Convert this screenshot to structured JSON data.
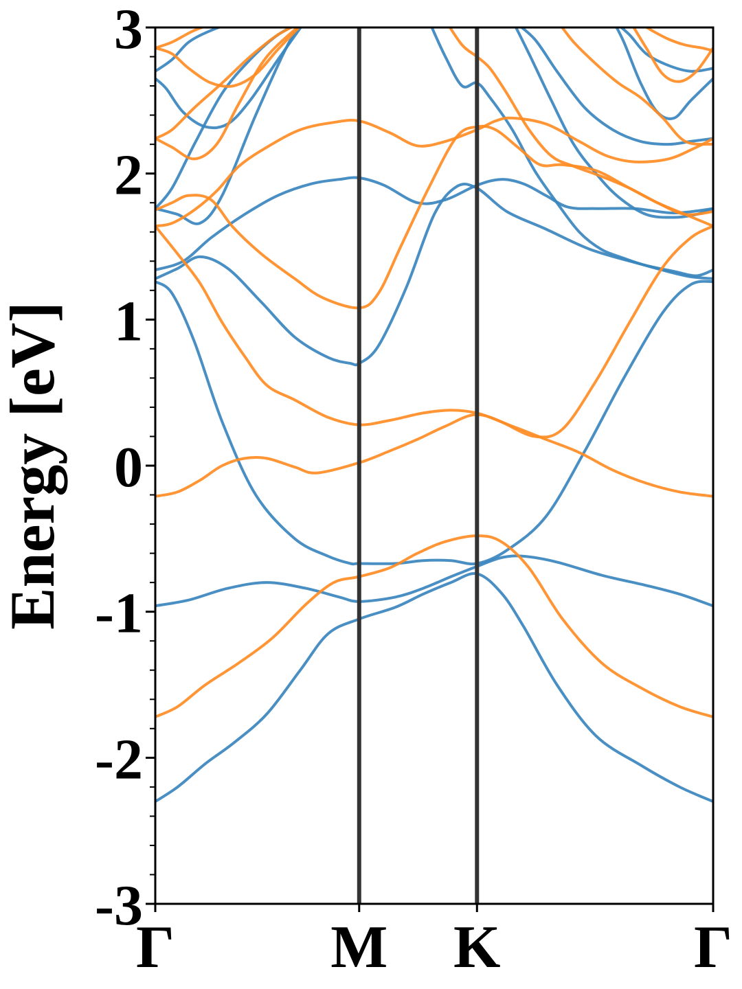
{
  "chart_data": {
    "type": "line",
    "title": "",
    "ylabel": "Energy [eV]",
    "xlabel": "",
    "ylim": [
      -3,
      3
    ],
    "yticks": [
      {
        "value": -3,
        "label": "-3"
      },
      {
        "value": -2,
        "label": "-2"
      },
      {
        "value": -1,
        "label": "-1"
      },
      {
        "value": 0,
        "label": "0"
      },
      {
        "value": 1,
        "label": "1"
      },
      {
        "value": 2,
        "label": "2"
      },
      {
        "value": 3,
        "label": "3"
      }
    ],
    "kpoints": [
      {
        "label": "Γ",
        "k": 0.0
      },
      {
        "label": "M",
        "k": 0.3655
      },
      {
        "label": "K",
        "k": 0.5767
      },
      {
        "label": "Γ",
        "k": 1.0
      }
    ],
    "grid": false,
    "legend": "none",
    "colors": {
      "spin_up": "#3a86be",
      "spin_down": "#ff8c24",
      "kpoint_lines": "#333333"
    },
    "series": [
      {
        "spin": "up",
        "x": [
          0,
          0.04,
          0.09,
          0.14,
          0.2,
          0.26,
          0.31,
          0.3655,
          0.43,
          0.48,
          0.53,
          0.5767,
          0.62,
          0.66,
          0.72,
          0.79,
          0.87,
          0.94,
          1.0
        ],
        "y": [
          -2.3,
          -2.2,
          -2.04,
          -1.9,
          -1.7,
          -1.4,
          -1.15,
          -1.05,
          -0.97,
          -0.88,
          -0.8,
          -0.74,
          -0.87,
          -1.1,
          -1.5,
          -1.85,
          -2.05,
          -2.2,
          -2.3
        ]
      },
      {
        "spin": "up",
        "x": [
          0,
          0.06,
          0.13,
          0.2,
          0.27,
          0.33,
          0.3655,
          0.43,
          0.48,
          0.53,
          0.5767,
          0.62,
          0.66,
          0.72,
          0.8,
          0.88,
          0.94,
          1.0
        ],
        "y": [
          -0.96,
          -0.92,
          -0.84,
          -0.8,
          -0.84,
          -0.9,
          -0.93,
          -0.9,
          -0.84,
          -0.76,
          -0.69,
          -0.63,
          -0.62,
          -0.66,
          -0.75,
          -0.82,
          -0.88,
          -0.96
        ]
      },
      {
        "spin": "up",
        "x": [
          0,
          0.03,
          0.07,
          0.12,
          0.18,
          0.25,
          0.31,
          0.35,
          0.3655,
          0.43,
          0.48,
          0.53,
          0.5767,
          0.63,
          0.7,
          0.77,
          0.84,
          0.91,
          0.96,
          1.0
        ],
        "y": [
          1.26,
          1.18,
          0.85,
          0.3,
          -0.2,
          -0.5,
          -0.62,
          -0.67,
          -0.67,
          -0.67,
          -0.65,
          -0.65,
          -0.67,
          -0.58,
          -0.35,
          0.1,
          0.6,
          1.05,
          1.24,
          1.26
        ]
      },
      {
        "spin": "up",
        "x": [
          0,
          0.04,
          0.08,
          0.13,
          0.19,
          0.25,
          0.31,
          0.35,
          0.3655,
          0.4,
          0.45,
          0.5,
          0.54,
          0.5767,
          0.63,
          0.7,
          0.78,
          0.87,
          0.95,
          1.0
        ],
        "y": [
          1.28,
          1.35,
          1.43,
          1.35,
          1.12,
          0.88,
          0.74,
          0.7,
          0.7,
          0.82,
          1.22,
          1.72,
          1.91,
          1.9,
          1.74,
          1.62,
          1.48,
          1.38,
          1.3,
          1.28
        ]
      },
      {
        "spin": "up",
        "x": [
          0,
          0.05,
          0.1,
          0.16,
          0.22,
          0.28,
          0.33,
          0.3655,
          0.41,
          0.47,
          0.52,
          0.5767,
          0.62,
          0.66,
          0.7,
          0.74,
          0.79,
          0.86,
          0.93,
          1.0
        ],
        "y": [
          1.34,
          1.4,
          1.56,
          1.72,
          1.85,
          1.93,
          1.96,
          1.97,
          1.92,
          1.8,
          1.82,
          1.92,
          1.96,
          1.93,
          1.85,
          1.77,
          1.76,
          1.76,
          1.73,
          1.76
        ]
      },
      {
        "spin": "up",
        "x": [
          0,
          0.04,
          0.08,
          0.12,
          0.18,
          0.24,
          0.27
        ],
        "y": [
          1.76,
          1.72,
          1.66,
          1.85,
          2.4,
          2.9,
          3.05
        ]
      },
      {
        "spin": "up",
        "x": [
          0,
          0.03,
          0.07,
          0.12,
          0.17,
          0.22,
          0.27
        ],
        "y": [
          1.76,
          1.9,
          2.2,
          2.55,
          2.78,
          2.95,
          3.05
        ]
      },
      {
        "spin": "up",
        "x": [
          0,
          0.02,
          0.05,
          0.09,
          0.13,
          0.17,
          0.22,
          0.27
        ],
        "y": [
          2.65,
          2.58,
          2.42,
          2.32,
          2.34,
          2.5,
          2.78,
          3.05
        ]
      },
      {
        "spin": "up",
        "x": [
          0,
          0.03,
          0.06,
          0.1,
          0.14,
          0.18
        ],
        "y": [
          2.7,
          2.78,
          2.9,
          2.98,
          3.03,
          3.05
        ]
      },
      {
        "spin": "up",
        "x": [
          0.49,
          0.52,
          0.55,
          0.5767,
          0.6,
          0.64,
          0.68,
          0.72,
          0.76,
          0.8,
          0.84,
          0.88,
          0.93,
          0.97,
          1.0
        ],
        "y": [
          3.05,
          2.8,
          2.6,
          2.62,
          2.52,
          2.3,
          2.02,
          1.8,
          1.6,
          1.48,
          1.42,
          1.37,
          1.33,
          1.3,
          1.34
        ]
      },
      {
        "spin": "up",
        "x": [
          0.64,
          0.67,
          0.71,
          0.75,
          0.79,
          0.83,
          0.88,
          0.93,
          0.97,
          1.0
        ],
        "y": [
          3.05,
          2.82,
          2.5,
          2.2,
          2.0,
          1.84,
          1.72,
          1.7,
          1.72,
          1.76
        ]
      },
      {
        "spin": "up",
        "x": [
          0.64,
          0.68,
          0.72,
          0.77,
          0.82,
          0.87,
          0.92,
          0.96,
          1.0
        ],
        "y": [
          3.05,
          2.92,
          2.7,
          2.45,
          2.3,
          2.22,
          2.2,
          2.22,
          2.24
        ]
      },
      {
        "spin": "up",
        "x": [
          0.82,
          0.84,
          0.87,
          0.9,
          0.93,
          0.96,
          1.0
        ],
        "y": [
          3.05,
          2.9,
          2.62,
          2.42,
          2.38,
          2.5,
          2.65
        ]
      },
      {
        "spin": "up",
        "x": [
          0.82,
          0.85,
          0.88,
          0.92,
          0.96,
          1.0
        ],
        "y": [
          3.05,
          2.95,
          2.82,
          2.74,
          2.7,
          2.72
        ]
      },
      {
        "spin": "down",
        "x": [
          0,
          0.04,
          0.09,
          0.15,
          0.21,
          0.27,
          0.32,
          0.3655,
          0.42,
          0.47,
          0.52,
          0.5767,
          0.62,
          0.67,
          0.73,
          0.8,
          0.87,
          0.94,
          1.0
        ],
        "y": [
          -1.72,
          -1.65,
          -1.5,
          -1.35,
          -1.18,
          -0.95,
          -0.8,
          -0.76,
          -0.7,
          -0.6,
          -0.52,
          -0.48,
          -0.52,
          -0.7,
          -1.05,
          -1.35,
          -1.52,
          -1.65,
          -1.72
        ]
      },
      {
        "spin": "down",
        "x": [
          0,
          0.04,
          0.08,
          0.12,
          0.16,
          0.2,
          0.25,
          0.29,
          0.3655,
          0.42,
          0.47,
          0.52,
          0.5767,
          0.64,
          0.7,
          0.76,
          0.82,
          0.88,
          0.94,
          1.0
        ],
        "y": [
          -0.21,
          -0.18,
          -0.1,
          0.0,
          0.05,
          0.05,
          -0.01,
          -0.05,
          0.02,
          0.1,
          0.18,
          0.27,
          0.35,
          0.27,
          0.18,
          0.09,
          -0.03,
          -0.12,
          -0.18,
          -0.21
        ]
      },
      {
        "spin": "down",
        "x": [
          0,
          0.04,
          0.08,
          0.12,
          0.16,
          0.2,
          0.25,
          0.31,
          0.3655,
          0.42,
          0.48,
          0.53,
          0.5767,
          0.62,
          0.68,
          0.73,
          0.79,
          0.85,
          0.91,
          0.96,
          1.0
        ],
        "y": [
          1.64,
          1.45,
          1.25,
          0.98,
          0.75,
          0.55,
          0.45,
          0.33,
          0.28,
          0.31,
          0.36,
          0.38,
          0.36,
          0.3,
          0.2,
          0.25,
          0.58,
          0.98,
          1.36,
          1.56,
          1.64
        ]
      },
      {
        "spin": "down",
        "x": [
          0,
          0.03,
          0.06,
          0.1,
          0.14,
          0.19,
          0.25,
          0.3,
          0.3655,
          0.4,
          0.44,
          0.49,
          0.54,
          0.5767,
          0.61,
          0.65,
          0.69,
          0.73,
          0.79,
          0.85,
          0.9,
          0.95,
          1.0
        ],
        "y": [
          1.75,
          1.8,
          1.85,
          1.82,
          1.63,
          1.45,
          1.28,
          1.15,
          1.08,
          1.18,
          1.5,
          1.9,
          2.25,
          2.32,
          2.3,
          2.18,
          2.06,
          2.06,
          2.02,
          1.9,
          1.8,
          1.72,
          1.74
        ]
      },
      {
        "spin": "down",
        "x": [
          0,
          0.03,
          0.07,
          0.11,
          0.15,
          0.2,
          0.26,
          0.32,
          0.3655,
          0.42,
          0.47,
          0.52,
          0.5767,
          0.61,
          0.64,
          0.7,
          0.76,
          0.81,
          0.86,
          0.92,
          0.97,
          1.0
        ],
        "y": [
          1.64,
          1.66,
          1.75,
          1.88,
          2.05,
          2.18,
          2.3,
          2.35,
          2.36,
          2.28,
          2.19,
          2.22,
          2.3,
          2.36,
          2.38,
          2.34,
          2.22,
          2.12,
          2.08,
          2.1,
          2.18,
          2.24
        ]
      },
      {
        "spin": "down",
        "x": [
          0,
          0.03,
          0.07,
          0.11,
          0.15,
          0.2,
          0.27
        ],
        "y": [
          2.24,
          2.18,
          2.1,
          2.2,
          2.48,
          2.8,
          3.05
        ]
      },
      {
        "spin": "down",
        "x": [
          0,
          0.03,
          0.07,
          0.12,
          0.17,
          0.22,
          0.27
        ],
        "y": [
          2.24,
          2.3,
          2.45,
          2.62,
          2.8,
          2.95,
          3.05
        ]
      },
      {
        "spin": "down",
        "x": [
          0,
          0.03,
          0.06,
          0.1,
          0.14,
          0.18,
          0.22,
          0.27
        ],
        "y": [
          2.86,
          2.82,
          2.72,
          2.62,
          2.6,
          2.68,
          2.85,
          3.05
        ]
      },
      {
        "spin": "down",
        "x": [
          0,
          0.03,
          0.07,
          0.11,
          0.15
        ],
        "y": [
          2.86,
          2.9,
          2.98,
          3.03,
          3.05
        ]
      },
      {
        "spin": "down",
        "x": [
          0.52,
          0.55,
          0.5767,
          0.6,
          0.63,
          0.67,
          0.71,
          0.75,
          0.8,
          0.85,
          0.9,
          0.95,
          1.0
        ],
        "y": [
          3.05,
          2.88,
          2.8,
          2.72,
          2.55,
          2.3,
          2.12,
          2.05,
          1.98,
          1.9,
          1.8,
          1.72,
          1.64
        ]
      },
      {
        "spin": "down",
        "x": [
          0.72,
          0.75,
          0.79,
          0.83,
          0.87,
          0.91,
          0.95,
          1.0
        ],
        "y": [
          3.05,
          2.9,
          2.75,
          2.62,
          2.52,
          2.38,
          2.22,
          2.2
        ]
      },
      {
        "spin": "down",
        "x": [
          0.85,
          0.88,
          0.91,
          0.94,
          0.97,
          1.0
        ],
        "y": [
          3.05,
          2.86,
          2.68,
          2.63,
          2.7,
          2.86
        ]
      },
      {
        "spin": "down",
        "x": [
          0.86,
          0.89,
          0.92,
          0.95,
          0.98,
          1.0
        ],
        "y": [
          3.05,
          2.98,
          2.92,
          2.88,
          2.86,
          2.84
        ]
      }
    ]
  }
}
